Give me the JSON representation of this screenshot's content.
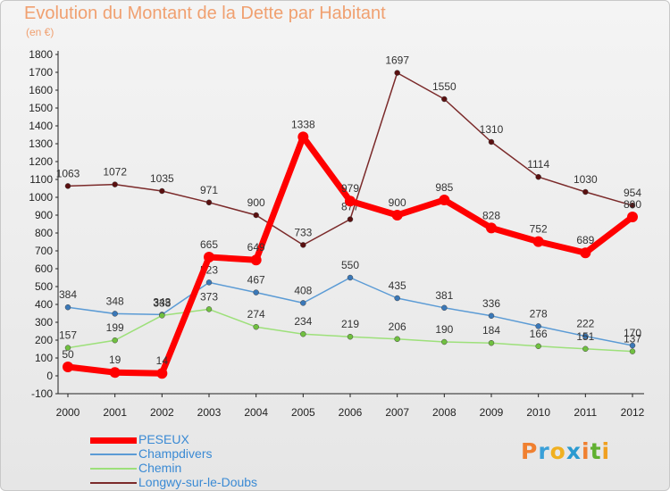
{
  "title": "Evolution du Montant de la Dette par Habitant",
  "subtitle": "(en €)",
  "logo": {
    "text": "Proxiti",
    "colors": [
      "#f08030",
      "#3aa0d8",
      "#f0b020",
      "#2a9ad0",
      "#f08030",
      "#60b030",
      "#f0a020"
    ]
  },
  "chart_data": {
    "type": "line",
    "x": [
      "2000",
      "2001",
      "2002",
      "2003",
      "2004",
      "2005",
      "2006",
      "2007",
      "2008",
      "2009",
      "2010",
      "2011",
      "2012"
    ],
    "ylim": [
      -100,
      1800
    ],
    "yticks": [
      -100,
      0,
      100,
      200,
      300,
      400,
      500,
      600,
      700,
      800,
      900,
      1000,
      1100,
      1200,
      1300,
      1400,
      1500,
      1600,
      1700,
      1800
    ],
    "grid": false,
    "legend_position": "bottom-left",
    "series": [
      {
        "name": "PESEUX",
        "color": "#ff0000",
        "values": [
          50,
          19,
          14,
          665,
          649,
          1338,
          979,
          900,
          985,
          828,
          752,
          689,
          890
        ]
      },
      {
        "name": "Champdivers",
        "color": "#5b9bd5",
        "values": [
          384,
          348,
          343,
          523,
          467,
          408,
          550,
          435,
          381,
          336,
          278,
          222,
          170
        ]
      },
      {
        "name": "Chemin",
        "color": "#9de07a",
        "values": [
          157,
          199,
          338,
          373,
          274,
          234,
          219,
          206,
          190,
          184,
          166,
          151,
          137
        ]
      },
      {
        "name": "Longwy-sur-le-Doubs",
        "color": "#7b2a2a",
        "values": [
          1063,
          1072,
          1035,
          971,
          900,
          733,
          877,
          1697,
          1550,
          1310,
          1114,
          1030,
          954
        ]
      }
    ]
  }
}
